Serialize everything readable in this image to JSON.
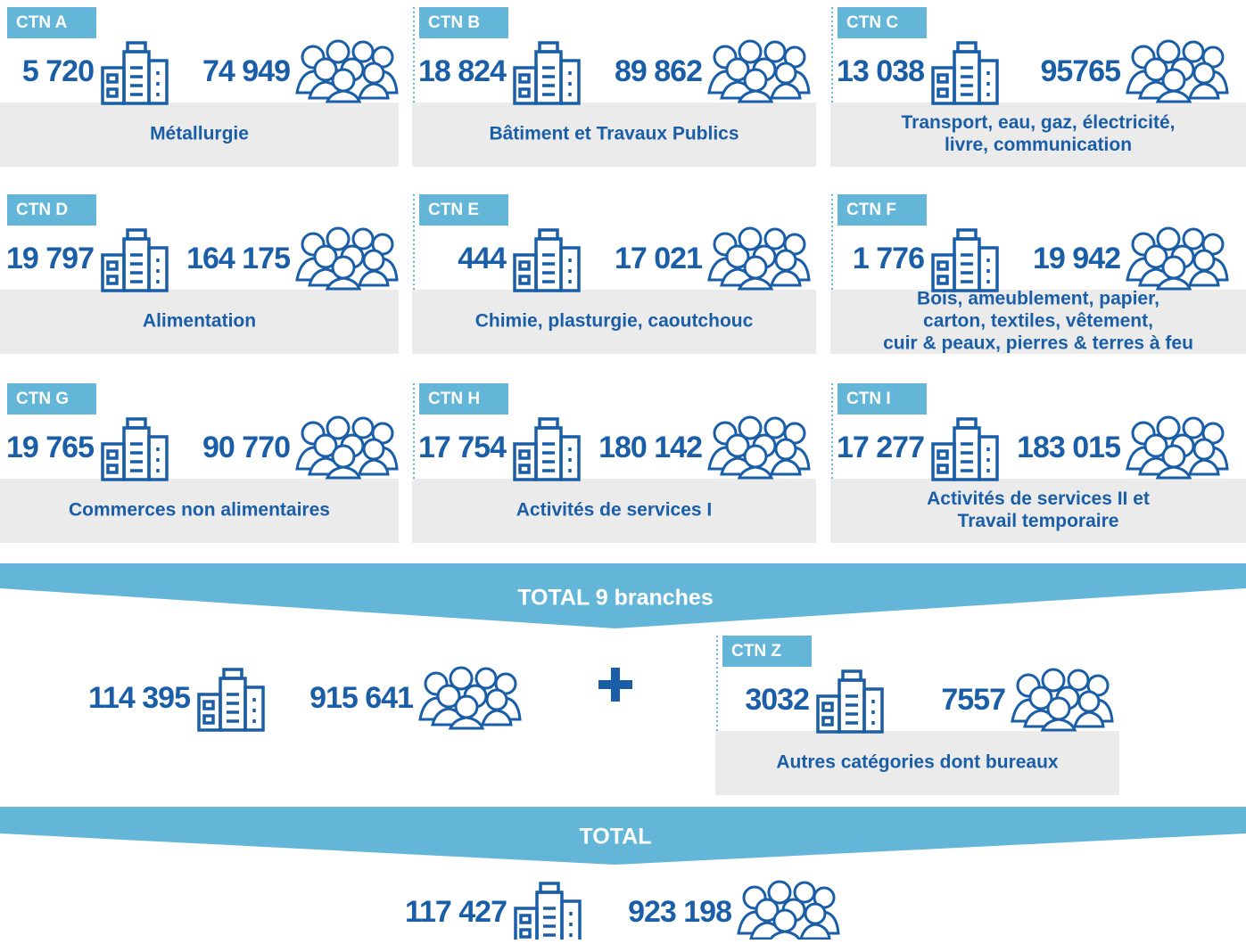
{
  "cards": [
    {
      "tag": "CTN A",
      "companies": "5 720",
      "employees": "74 949",
      "name": [
        "Métallurgie"
      ]
    },
    {
      "tag": "CTN B",
      "companies": "18 824",
      "employees": "89 862",
      "name": [
        "Bâtiment et Travaux Publics"
      ]
    },
    {
      "tag": "CTN C",
      "companies": "13  038",
      "employees": "95765",
      "name": [
        "Transport, eau, gaz, électricité,",
        "livre, communication"
      ]
    },
    {
      "tag": "CTN D",
      "companies": "19 797",
      "employees": "164 175",
      "name": [
        "Alimentation"
      ]
    },
    {
      "tag": "CTN E",
      "companies": "444",
      "employees": "17 021",
      "name": [
        "Chimie, plasturgie, caoutchouc"
      ]
    },
    {
      "tag": "CTN F",
      "companies": "1 776",
      "employees": "19 942",
      "name": [
        "Bois, ameublement, papier,",
        "carton, textiles, vêtement,",
        "cuir & peaux, pierres & terres à feu"
      ]
    },
    {
      "tag": "CTN G",
      "companies": "19 765",
      "employees": "90 770",
      "name": [
        "Commerces non alimentaires"
      ]
    },
    {
      "tag": "CTN H",
      "companies": "17 754",
      "employees": "180 142",
      "name": [
        "Activités de services I"
      ]
    },
    {
      "tag": "CTN I",
      "companies": "17 277",
      "employees": "183 015",
      "name": [
        "Activités de services II et",
        "Travail temporaire"
      ]
    }
  ],
  "total_branches": {
    "title": "TOTAL 9 branches",
    "companies": "114 395",
    "employees": "915 641"
  },
  "ctn_z": {
    "tag": "CTN Z",
    "companies": "3032",
    "employees": "7557",
    "name": [
      "Autres catégories dont bureaux"
    ]
  },
  "total": {
    "title": "TOTAL",
    "companies": "117 427",
    "employees": "923 198"
  }
}
